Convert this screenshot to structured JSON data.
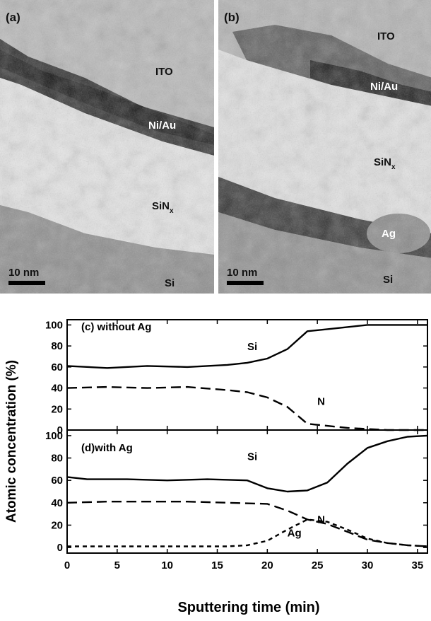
{
  "micrographs": [
    {
      "id": "a",
      "panel_label": "(a)",
      "layers": {
        "top": "ITO",
        "metal": "Ni/Au",
        "dielectric": "SiN",
        "dielectric_sub": "x",
        "substrate": "Si"
      },
      "scale_bar": "10 nm"
    },
    {
      "id": "b",
      "panel_label": "(b)",
      "layers": {
        "top": "ITO",
        "metal": "Ni/Au",
        "dielectric": "SiN",
        "dielectric_sub": "x",
        "ag": "Ag",
        "substrate": "Si"
      },
      "scale_bar": "10 nm"
    }
  ],
  "chart_data": {
    "type": "line",
    "xlabel": "Sputtering time (min)",
    "ylabel": "Atomic concentration (%)",
    "xlim": [
      0,
      36
    ],
    "x_ticks": [
      "0",
      "5",
      "10",
      "15",
      "20",
      "25",
      "30",
      "35"
    ],
    "y_ticks": [
      "0",
      "20",
      "40",
      "60",
      "80",
      "100"
    ],
    "subplots": [
      {
        "id": "c",
        "label": "(c) without Ag",
        "ylim": [
          0,
          105
        ],
        "series": [
          {
            "name": "Si",
            "style": "solid",
            "x": [
              0,
              4,
              8,
              12,
              16,
              18,
              20,
              22,
              24,
              26,
              28,
              30,
              32,
              34,
              36
            ],
            "y": [
              61,
              59,
              61,
              60,
              62,
              64,
              68,
              77,
              94,
              96,
              98,
              100,
              100,
              100,
              100
            ]
          },
          {
            "name": "N",
            "style": "dashed",
            "x": [
              0,
              4,
              8,
              12,
              16,
              18,
              20,
              22,
              24,
              26,
              28,
              30,
              32,
              34,
              36
            ],
            "y": [
              40,
              41,
              40,
              41,
              38,
              36,
              31,
              22,
              6,
              4,
              2,
              1,
              0,
              0,
              0
            ]
          }
        ]
      },
      {
        "id": "d",
        "label": "(d)with Ag",
        "ylim": [
          -5,
          105
        ],
        "series": [
          {
            "name": "Si",
            "style": "solid",
            "x": [
              0,
              2,
              6,
              10,
              14,
              18,
              20,
              22,
              24,
              26,
              28,
              30,
              32,
              34,
              36
            ],
            "y": [
              63,
              61,
              61,
              60,
              61,
              60,
              53,
              50,
              51,
              58,
              75,
              89,
              95,
              99,
              100
            ]
          },
          {
            "name": "N",
            "style": "dashed",
            "x": [
              0,
              4,
              8,
              12,
              16,
              20,
              22,
              24,
              26,
              28,
              30,
              32,
              34,
              36
            ],
            "y": [
              40,
              41,
              41,
              41,
              40,
              39,
              33,
              25,
              21,
              14,
              7,
              4,
              2,
              1
            ]
          },
          {
            "name": "Ag",
            "style": "short-dashed",
            "x": [
              0,
              4,
              8,
              12,
              16,
              18,
              20,
              22,
              24,
              26,
              28,
              30,
              32,
              34,
              36
            ],
            "y": [
              1,
              1,
              1,
              1,
              1,
              2,
              6,
              16,
              25,
              23,
              16,
              8,
              4,
              2,
              1
            ]
          }
        ]
      }
    ]
  }
}
